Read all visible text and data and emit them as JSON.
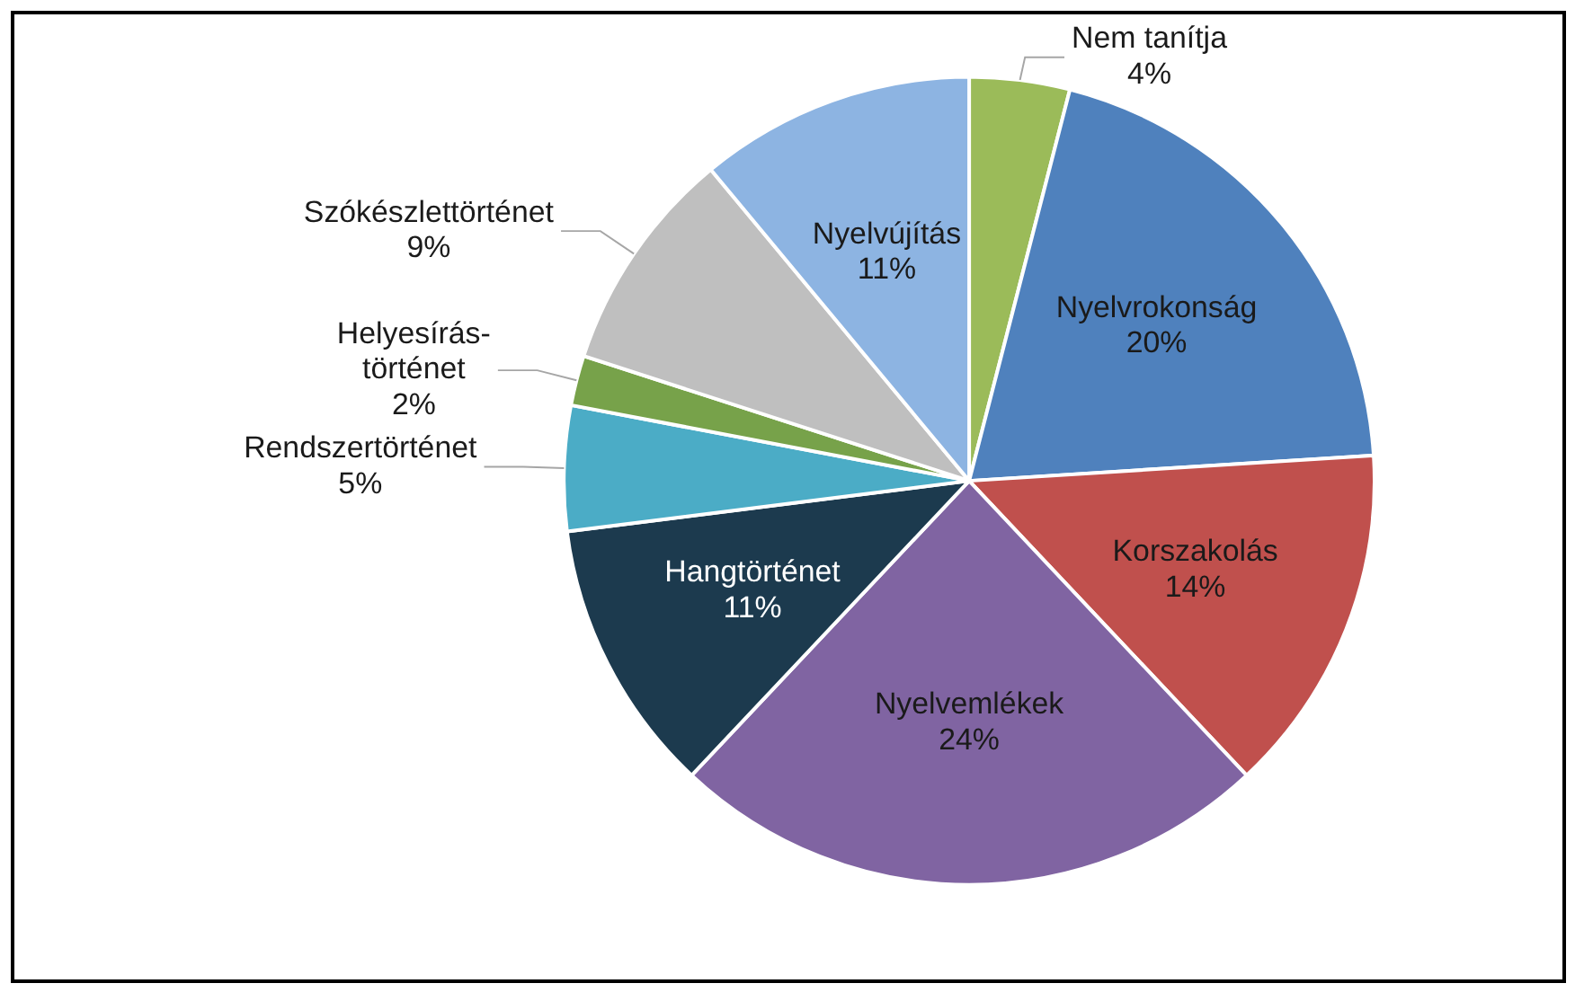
{
  "chart_data": {
    "type": "pie",
    "categories": [
      "Nem tanítja",
      "Nyelvrokonság",
      "Korszakolás",
      "Nyelvemlékek",
      "Hangtörténet",
      "Rendszertörténet",
      "Helyesírás-történet",
      "Szókészlettörténet",
      "Nyelvújítás"
    ],
    "values": [
      4,
      20,
      14,
      24,
      11,
      5,
      2,
      9,
      11
    ],
    "value_labels": [
      "4%",
      "20%",
      "14%",
      "24%",
      "11%",
      "5%",
      "2%",
      "9%",
      "11%"
    ],
    "colors": [
      "#9bbb59",
      "#4f81bd",
      "#c0504d",
      "#8064a2",
      "#1c3a4e",
      "#4bacc6",
      "#77a24a",
      "#bfbfbf",
      "#8db4e2"
    ],
    "legend": false
  }
}
